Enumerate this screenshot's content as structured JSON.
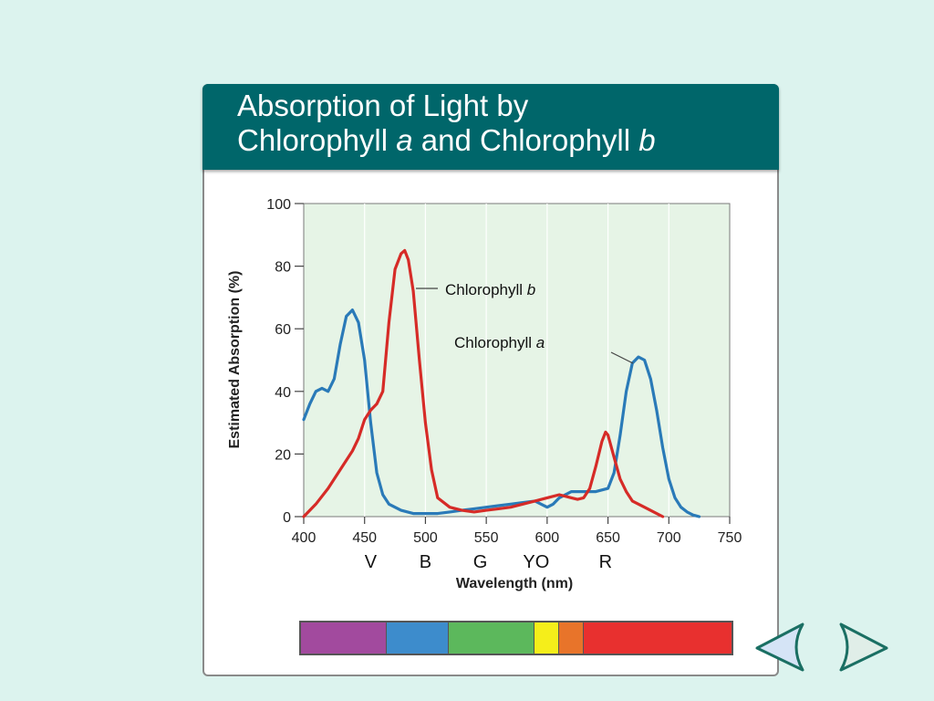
{
  "title": {
    "line1": "Absorption of Light by",
    "line2_part1": "Chlorophyll ",
    "line2_part2": "a",
    "line2_part3": " and Chlorophyll ",
    "line2_part4": "b"
  },
  "chart_data": {
    "type": "line",
    "xlabel": "Wavelength (nm)",
    "ylabel": "Estimated Absorption (%)",
    "xlim": [
      400,
      750
    ],
    "ylim": [
      0,
      100
    ],
    "x_ticks": [
      400,
      450,
      500,
      550,
      600,
      650,
      700,
      750
    ],
    "y_ticks": [
      0,
      20,
      40,
      60,
      80,
      100
    ],
    "color_band_labels": [
      {
        "label": "V",
        "x": 455
      },
      {
        "label": "B",
        "x": 500
      },
      {
        "label": "G",
        "x": 545
      },
      {
        "label": "YO",
        "x": 591
      },
      {
        "label": "R",
        "x": 648
      }
    ],
    "series": [
      {
        "name": "Chlorophyll a",
        "label_italic": "a",
        "color": "#2a7ab8",
        "x": [
          400,
          405,
          410,
          415,
          420,
          425,
          430,
          435,
          440,
          445,
          450,
          455,
          460,
          465,
          470,
          480,
          490,
          500,
          510,
          520,
          530,
          540,
          550,
          560,
          570,
          580,
          590,
          595,
          600,
          605,
          610,
          620,
          630,
          640,
          650,
          655,
          660,
          665,
          670,
          675,
          680,
          685,
          690,
          695,
          700,
          705,
          710,
          715,
          720,
          725
        ],
        "y": [
          31,
          36,
          40,
          41,
          40,
          44,
          55,
          64,
          66,
          62,
          50,
          30,
          14,
          7,
          4,
          2,
          1,
          1,
          1,
          1.5,
          2,
          2.5,
          3,
          3.5,
          4,
          4.5,
          5,
          4,
          3,
          4,
          6,
          8,
          8,
          8,
          9,
          14,
          26,
          40,
          49,
          51,
          50,
          44,
          34,
          22,
          12,
          6,
          3,
          1.5,
          0.5,
          0
        ]
      },
      {
        "name": "Chlorophyll b",
        "label_italic": "b",
        "color": "#d62b27",
        "x": [
          400,
          410,
          420,
          430,
          440,
          445,
          450,
          455,
          460,
          465,
          470,
          475,
          480,
          483,
          486,
          490,
          495,
          500,
          505,
          510,
          520,
          530,
          540,
          550,
          560,
          570,
          580,
          590,
          600,
          610,
          620,
          625,
          630,
          635,
          640,
          645,
          648,
          650,
          655,
          660,
          665,
          670,
          680,
          690,
          695
        ],
        "y": [
          0,
          4,
          9,
          15,
          21,
          25,
          31,
          34,
          36,
          40,
          62,
          79,
          84,
          85,
          82,
          72,
          50,
          30,
          15,
          6,
          3,
          2,
          1.5,
          2,
          2.5,
          3,
          4,
          5,
          6,
          7,
          6,
          5.5,
          6,
          9,
          16,
          24,
          27,
          26,
          19,
          12,
          8,
          5,
          3,
          1,
          0
        ]
      }
    ],
    "annotations": [
      {
        "text": "Chlorophyll ",
        "italic": "b",
        "series": "Chlorophyll b"
      },
      {
        "text": "Chlorophyll ",
        "italic": "a",
        "series": "Chlorophyll a"
      }
    ]
  },
  "spectrum_bar": {
    "segments": [
      {
        "name": "violet",
        "color": "#a24a9e",
        "from": 400,
        "to": 470
      },
      {
        "name": "blue",
        "color": "#3d8ccc",
        "from": 470,
        "to": 520
      },
      {
        "name": "green",
        "color": "#5cb85c",
        "from": 520,
        "to": 590
      },
      {
        "name": "yellow",
        "color": "#f5ee1a",
        "from": 590,
        "to": 610
      },
      {
        "name": "orange",
        "color": "#e8742a",
        "from": 610,
        "to": 630
      },
      {
        "name": "red",
        "color": "#e8302f",
        "from": 630,
        "to": 750
      }
    ]
  },
  "navigation": {
    "prev_icon": "left-arrow-icon",
    "next_icon": "right-arrow-icon",
    "prev_color": "#d5e4f6",
    "next_color": "#e0eee8",
    "nav_stroke": "#1a6f63"
  },
  "colors": {
    "background": "#dcf3ee",
    "title_bar": "#00666a",
    "plot_area": "#e6f4e6"
  }
}
